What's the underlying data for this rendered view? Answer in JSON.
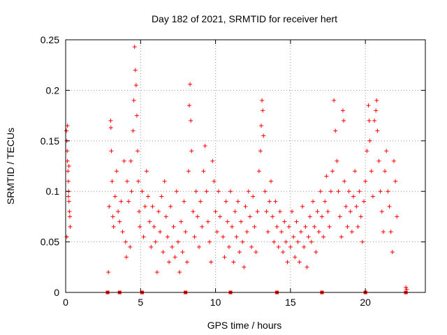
{
  "chart_data": {
    "type": "scatter",
    "title": "Day 182 of 2021, SRMTID for receiver hert",
    "xlabel": "GPS time / hours",
    "ylabel": "SRMTID / TECUs",
    "xlim": [
      0,
      24
    ],
    "ylim": [
      0,
      0.25
    ],
    "xticks": [
      0,
      5,
      10,
      15,
      20
    ],
    "xtick_labels": [
      "0",
      "5",
      "10",
      "15",
      "20"
    ],
    "yticks": [
      0,
      0.05,
      0.1,
      0.15,
      0.2,
      0.25
    ],
    "ytick_labels": [
      "0",
      "0.05",
      "0.1",
      "0.15",
      "0.2",
      "0.25"
    ],
    "grid": true,
    "marker": "+",
    "color": "#ff0000",
    "series": [
      {
        "name": "SRMTID",
        "points": [
          [
            0.05,
            0.16
          ],
          [
            0.08,
            0.15
          ],
          [
            0.1,
            0.14
          ],
          [
            0.12,
            0.13
          ],
          [
            0.15,
            0.12
          ],
          [
            0.18,
            0.11
          ],
          [
            0.2,
            0.1
          ],
          [
            0.22,
            0.09
          ],
          [
            0.25,
            0.08
          ],
          [
            0.28,
            0.075
          ],
          [
            0.3,
            0.065
          ],
          [
            0.12,
            0.165
          ],
          [
            0.18,
            0.095
          ],
          [
            0.22,
            0.125
          ],
          [
            0.08,
            0.055
          ],
          [
            2.85,
            0.02
          ],
          [
            2.9,
            0.085
          ],
          [
            3.0,
            0.17
          ],
          [
            3.02,
            0.163
          ],
          [
            3.05,
            0.14
          ],
          [
            3.1,
            0.11
          ],
          [
            3.15,
            0.075
          ],
          [
            3.2,
            0.065
          ],
          [
            3.3,
            0.095
          ],
          [
            3.4,
            0.12
          ],
          [
            3.5,
            0.08
          ],
          [
            3.6,
            0.07
          ],
          [
            3.7,
            0.09
          ],
          [
            3.8,
            0.06
          ],
          [
            3.9,
            0.13
          ],
          [
            4.0,
            0.05
          ],
          [
            4.05,
            0.035
          ],
          [
            4.1,
            0.11
          ],
          [
            4.2,
            0.09
          ],
          [
            4.3,
            0.045
          ],
          [
            4.35,
            0.13
          ],
          [
            4.4,
            0.1
          ],
          [
            4.5,
            0.16
          ],
          [
            4.55,
            0.19
          ],
          [
            4.6,
            0.243
          ],
          [
            4.65,
            0.22
          ],
          [
            4.7,
            0.205
          ],
          [
            4.75,
            0.175
          ],
          [
            4.8,
            0.14
          ],
          [
            4.85,
            0.11
          ],
          [
            4.9,
            0.08
          ],
          [
            4.95,
            0.065
          ],
          [
            5.1,
            0.1
          ],
          [
            5.2,
            0.055
          ],
          [
            5.3,
            0.085
          ],
          [
            5.4,
            0.12
          ],
          [
            5.5,
            0.095
          ],
          [
            5.6,
            0.07
          ],
          [
            5.7,
            0.045
          ],
          [
            5.8,
            0.085
          ],
          [
            5.9,
            0.065
          ],
          [
            6.0,
            0.05
          ],
          [
            6.1,
            0.02
          ],
          [
            6.2,
            0.08
          ],
          [
            6.3,
            0.06
          ],
          [
            6.4,
            0.095
          ],
          [
            6.5,
            0.04
          ],
          [
            6.6,
            0.11
          ],
          [
            6.7,
            0.075
          ],
          [
            6.8,
            0.055
          ],
          [
            6.9,
            0.03
          ],
          [
            7.0,
            0.085
          ],
          [
            7.1,
            0.045
          ],
          [
            7.2,
            0.065
          ],
          [
            7.3,
            0.035
          ],
          [
            7.4,
            0.1
          ],
          [
            7.5,
            0.05
          ],
          [
            7.6,
            0.02
          ],
          [
            7.7,
            0.07
          ],
          [
            7.8,
            0.04
          ],
          [
            7.9,
            0.09
          ],
          [
            8.0,
            0.06
          ],
          [
            8.1,
            0.03
          ],
          [
            8.2,
            0.12
          ],
          [
            8.25,
            0.185
          ],
          [
            8.3,
            0.206
          ],
          [
            8.35,
            0.17
          ],
          [
            8.4,
            0.14
          ],
          [
            8.5,
            0.08
          ],
          [
            8.6,
            0.055
          ],
          [
            8.7,
            0.1
          ],
          [
            8.8,
            0.075
          ],
          [
            8.9,
            0.045
          ],
          [
            9.0,
            0.09
          ],
          [
            9.1,
            0.065
          ],
          [
            9.2,
            0.12
          ],
          [
            9.3,
            0.145
          ],
          [
            9.4,
            0.1
          ],
          [
            9.5,
            0.07
          ],
          [
            9.6,
            0.05
          ],
          [
            9.7,
            0.03
          ],
          [
            9.8,
            0.13
          ],
          [
            9.9,
            0.11
          ],
          [
            10.0,
            0.08
          ],
          [
            10.1,
            0.06
          ],
          [
            10.2,
            0.1
          ],
          [
            10.3,
            0.075
          ],
          [
            10.5,
            0.055
          ],
          [
            10.6,
            0.035
          ],
          [
            10.7,
            0.09
          ],
          [
            10.8,
            0.07
          ],
          [
            10.9,
            0.045
          ],
          [
            11.0,
            0.1
          ],
          [
            11.1,
            0.065
          ],
          [
            11.2,
            0.03
          ],
          [
            11.3,
            0.08
          ],
          [
            11.4,
            0.055
          ],
          [
            11.5,
            0.09
          ],
          [
            11.6,
            0.04
          ],
          [
            11.7,
            0.07
          ],
          [
            11.8,
            0.05
          ],
          [
            11.9,
            0.025
          ],
          [
            12.0,
            0.085
          ],
          [
            12.1,
            0.06
          ],
          [
            12.2,
            0.1
          ],
          [
            12.3,
            0.075
          ],
          [
            12.4,
            0.045
          ],
          [
            12.5,
            0.095
          ],
          [
            12.6,
            0.065
          ],
          [
            12.7,
            0.04
          ],
          [
            12.8,
            0.08
          ],
          [
            12.9,
            0.12
          ],
          [
            13.0,
            0.14
          ],
          [
            13.05,
            0.165
          ],
          [
            13.1,
            0.19
          ],
          [
            13.15,
            0.18
          ],
          [
            13.2,
            0.155
          ],
          [
            13.3,
            0.1
          ],
          [
            13.4,
            0.08
          ],
          [
            13.5,
            0.06
          ],
          [
            13.6,
            0.09
          ],
          [
            13.7,
            0.11
          ],
          [
            13.8,
            0.075
          ],
          [
            13.9,
            0.05
          ],
          [
            14.0,
            0.09
          ],
          [
            14.1,
            0.065
          ],
          [
            14.2,
            0.045
          ],
          [
            14.3,
            0.08
          ],
          [
            14.4,
            0.06
          ],
          [
            14.5,
            0.04
          ],
          [
            14.6,
            0.07
          ],
          [
            14.7,
            0.05
          ],
          [
            14.8,
            0.03
          ],
          [
            14.9,
            0.065
          ],
          [
            15.0,
            0.045
          ],
          [
            15.1,
            0.08
          ],
          [
            15.2,
            0.055
          ],
          [
            15.3,
            0.035
          ],
          [
            15.4,
            0.07
          ],
          [
            15.5,
            0.05
          ],
          [
            15.6,
            0.03
          ],
          [
            15.7,
            0.06
          ],
          [
            15.8,
            0.085
          ],
          [
            15.9,
            0.045
          ],
          [
            16.0,
            0.065
          ],
          [
            16.1,
            0.025
          ],
          [
            16.2,
            0.055
          ],
          [
            16.3,
            0.075
          ],
          [
            16.4,
            0.05
          ],
          [
            16.5,
            0.09
          ],
          [
            16.6,
            0.065
          ],
          [
            16.7,
            0.04
          ],
          [
            16.8,
            0.08
          ],
          [
            16.9,
            0.06
          ],
          [
            17.0,
            0.1
          ],
          [
            17.1,
            0.075
          ],
          [
            17.2,
            0.055
          ],
          [
            17.3,
            0.09
          ],
          [
            17.4,
            0.115
          ],
          [
            17.5,
            0.08
          ],
          [
            17.6,
            0.065
          ],
          [
            17.7,
            0.1
          ],
          [
            17.8,
            0.12
          ],
          [
            17.9,
            0.19
          ],
          [
            18.0,
            0.16
          ],
          [
            18.1,
            0.13
          ],
          [
            18.2,
            0.1
          ],
          [
            18.3,
            0.075
          ],
          [
            18.4,
            0.055
          ],
          [
            18.5,
            0.18
          ],
          [
            18.55,
            0.17
          ],
          [
            18.6,
            0.11
          ],
          [
            18.7,
            0.085
          ],
          [
            18.8,
            0.065
          ],
          [
            18.9,
            0.1
          ],
          [
            19.0,
            0.08
          ],
          [
            19.1,
            0.06
          ],
          [
            19.2,
            0.095
          ],
          [
            19.3,
            0.12
          ],
          [
            19.4,
            0.085
          ],
          [
            19.5,
            0.065
          ],
          [
            19.6,
            0.1
          ],
          [
            19.7,
            0.075
          ],
          [
            19.8,
            0.05
          ],
          [
            19.9,
            0.09
          ],
          [
            20.0,
            0.11
          ],
          [
            20.1,
            0.14
          ],
          [
            20.2,
            0.185
          ],
          [
            20.25,
            0.17
          ],
          [
            20.3,
            0.15
          ],
          [
            20.4,
            0.12
          ],
          [
            20.5,
            0.095
          ],
          [
            20.6,
            0.17
          ],
          [
            20.7,
            0.18
          ],
          [
            20.75,
            0.19
          ],
          [
            20.8,
            0.16
          ],
          [
            20.9,
            0.13
          ],
          [
            21.0,
            0.1
          ],
          [
            21.1,
            0.08
          ],
          [
            21.2,
            0.06
          ],
          [
            21.3,
            0.12
          ],
          [
            21.4,
            0.14
          ],
          [
            21.5,
            0.1
          ],
          [
            21.6,
            0.085
          ],
          [
            21.7,
            0.06
          ],
          [
            21.8,
            0.04
          ],
          [
            21.9,
            0.13
          ],
          [
            22.0,
            0.11
          ],
          [
            22.1,
            0.075
          ],
          [
            22.7,
            0.005
          ],
          [
            22.75,
            0.003
          ]
        ]
      }
    ],
    "marks_at_zero": [
      2.8,
      3.6,
      5.1,
      8.0,
      11.0,
      14.1,
      17.1,
      20.0,
      22.7
    ]
  }
}
